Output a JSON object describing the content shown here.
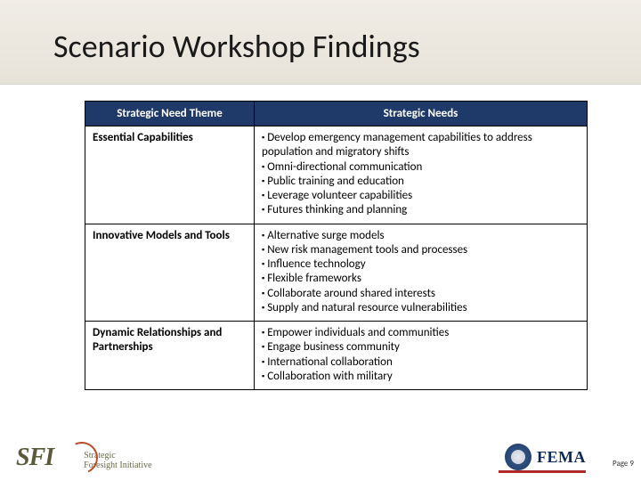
{
  "title": "Scenario Workshop Findings",
  "table": {
    "headers": {
      "theme": "Strategic Need Theme",
      "needs": "Strategic Needs"
    },
    "rows": [
      {
        "theme": "Essential Capabilities",
        "needs": [
          "Develop emergency management capabilities to address population and migratory shifts",
          "Omni-directional communication",
          "Public training and education",
          "Leverage volunteer capabilities",
          "Futures thinking and planning"
        ]
      },
      {
        "theme": "Innovative Models and Tools",
        "needs": [
          "Alternative surge models",
          "New risk management tools and processes",
          "Influence technology",
          "Flexible frameworks",
          "Collaborate around shared interests",
          "Supply and natural resource vulnerabilities"
        ]
      },
      {
        "theme": "Dynamic Relationships and Partnerships",
        "needs": [
          "Empower individuals and communities",
          "Engage business community",
          "International collaboration",
          "Collaboration with military"
        ]
      }
    ]
  },
  "styling": {
    "title_fontsize": 36,
    "title_color": "#1a1a1a",
    "header_bg": "#1f3a68",
    "header_text_color": "#ffffff",
    "cell_border_color": "#000000",
    "body_fontsize": 13,
    "band_gradient": [
      "#f0ede6",
      "#e6e2d8"
    ],
    "bullet_char": "▪"
  },
  "footer": {
    "sfi_mark": "SFI",
    "sfi_line1": "Strategic",
    "sfi_line2": "Foresight Initiative",
    "fema_text": "FEMA",
    "page_label": "Page 9"
  }
}
